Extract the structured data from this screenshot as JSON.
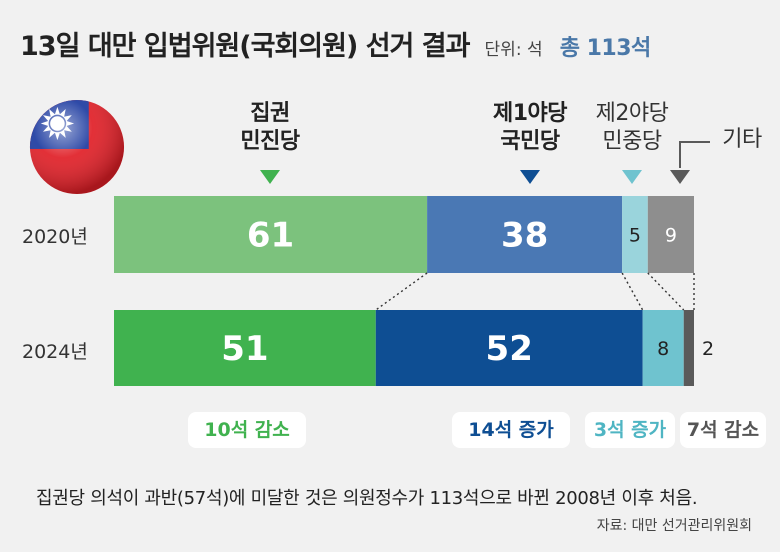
{
  "header": {
    "title": "13일 대만 입법위원(국회의원) 선거 결과",
    "unit_label": "단위: 석",
    "total_label": "총 113석"
  },
  "parties": {
    "ruling": [
      "집권",
      "민진당"
    ],
    "first_opposition": [
      "제1야당",
      "국민당"
    ],
    "second_opposition": [
      "제2야당",
      "민중당"
    ],
    "others": "기타"
  },
  "colors": {
    "ruling_2020": "#7cc27d",
    "ruling_2024": "#40b24f",
    "first_opp_2020": "#4a78b4",
    "first_opp_2024": "#0e4e93",
    "second_opp_2020": "#9ad4dc",
    "second_opp_2024": "#6fc3cf",
    "others_2020": "#8e8e8e",
    "others_2024": "#5a5a5a",
    "marker_ruling": "#40b24f",
    "marker_first": "#0e4e93",
    "marker_second": "#6fc3cf",
    "marker_others": "#5a5a5a",
    "total_text": "#4a78a8"
  },
  "chart_data": {
    "type": "bar",
    "orientation": "horizontal-stacked",
    "total_seats": 113,
    "categories": [
      "2020년",
      "2024년"
    ],
    "series": [
      {
        "name": "집권 민진당",
        "values": [
          61,
          51
        ]
      },
      {
        "name": "제1야당 국민당",
        "values": [
          38,
          52
        ]
      },
      {
        "name": "제2야당 민중당",
        "values": [
          5,
          8
        ]
      },
      {
        "name": "기타",
        "values": [
          9,
          2
        ]
      }
    ]
  },
  "changes": {
    "ruling": "10석 감소",
    "first_opposition": "14석 증가",
    "second_opposition": "3석 증가",
    "others": "7석 감소"
  },
  "footnote": "집권당 의석이 과반(57석)에 미달한 것은 의원정수가 113석으로 바뀐 2008년 이후 처음.",
  "source": "자료: 대만 선거관리위원회"
}
